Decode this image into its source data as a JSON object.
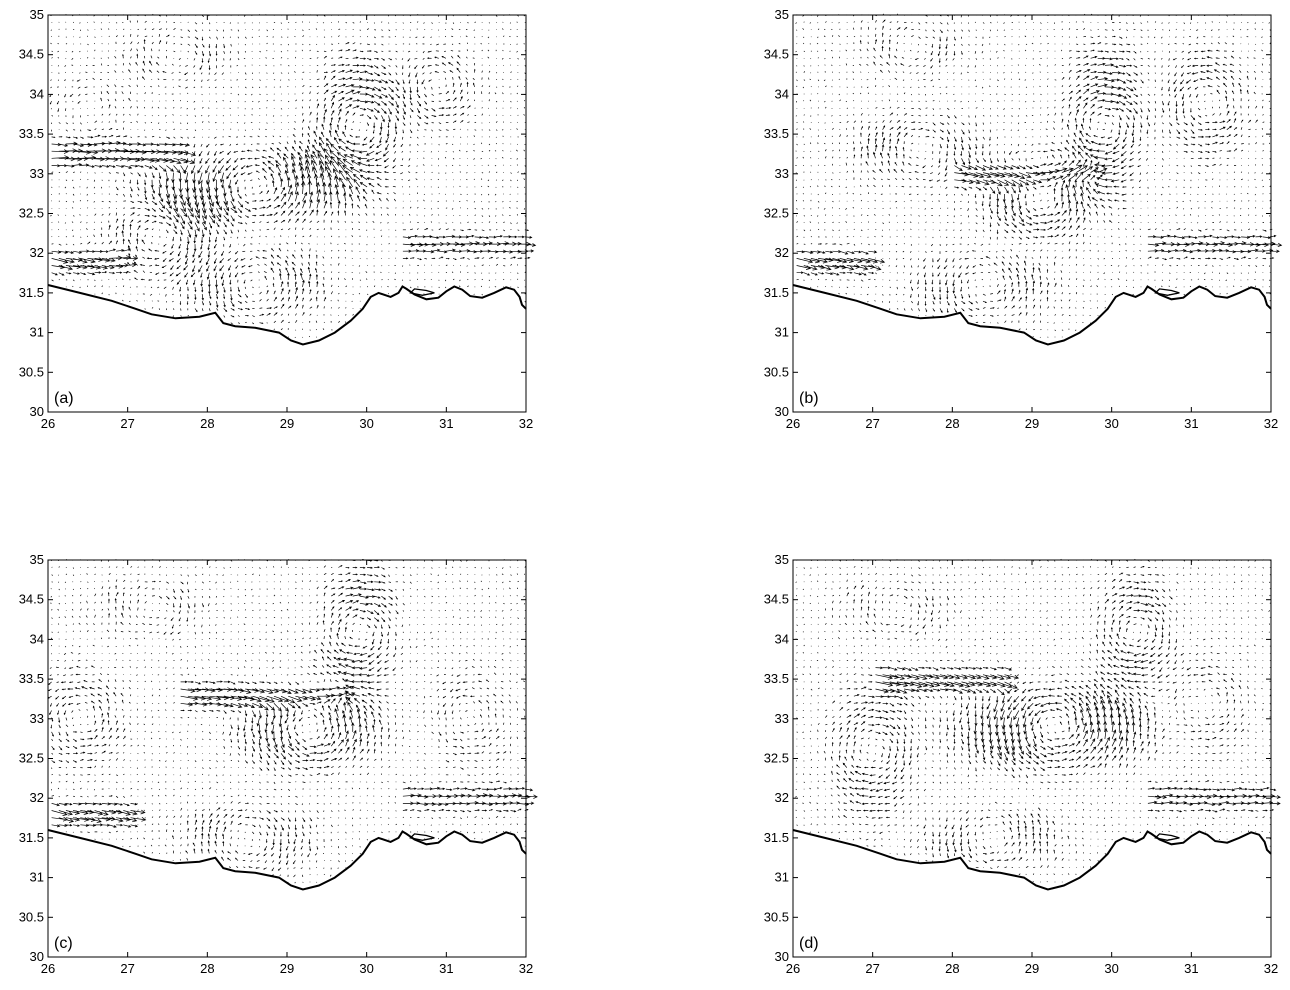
{
  "figure": {
    "panels": [
      {
        "id": "a",
        "label": "(a)"
      },
      {
        "id": "b",
        "label": "(b)"
      },
      {
        "id": "c",
        "label": "(c)"
      },
      {
        "id": "d",
        "label": "(d)"
      }
    ]
  },
  "chart_data": [
    {
      "type": "quiver",
      "panel_label": "(a)",
      "xlim": [
        26,
        32
      ],
      "ylim": [
        30,
        35
      ],
      "xticks": [
        "26",
        "27",
        "28",
        "29",
        "30",
        "31",
        "32"
      ],
      "yticks": [
        "30",
        "30.5",
        "31",
        "31.5",
        "32",
        "32.5",
        "33",
        "33.5",
        "34",
        "34.5",
        "35"
      ],
      "grid": false,
      "features": {
        "coastline": true,
        "eddies": [
          {
            "x": 28.6,
            "y": 32.85,
            "rx": 0.9,
            "ry": 0.35,
            "sign": 1,
            "strength": 1.0
          },
          {
            "x": 29.9,
            "y": 33.6,
            "rx": 0.4,
            "ry": 0.6,
            "sign": -1,
            "strength": 1.0
          },
          {
            "x": 30.9,
            "y": 34.1,
            "rx": 0.35,
            "ry": 0.35,
            "sign": 1,
            "strength": 0.8
          },
          {
            "x": 27.4,
            "y": 32.2,
            "rx": 0.5,
            "ry": 0.4,
            "sign": -1,
            "strength": 0.7
          },
          {
            "x": 28.6,
            "y": 31.6,
            "rx": 0.6,
            "ry": 0.35,
            "sign": 1,
            "strength": 0.7
          },
          {
            "x": 27.6,
            "y": 34.5,
            "rx": 0.5,
            "ry": 0.3,
            "sign": -1,
            "strength": 0.5
          },
          {
            "x": 26.5,
            "y": 33.8,
            "rx": 0.4,
            "ry": 0.35,
            "sign": 1,
            "strength": 0.4
          }
        ],
        "jets": [
          {
            "y": 33.25,
            "x0": 26.0,
            "x1": 27.5,
            "u": 1,
            "v": 0,
            "strength": 0.9
          },
          {
            "y": 31.9,
            "x0": 26.0,
            "x1": 26.8,
            "u": 1,
            "v": -0.2,
            "strength": 0.8
          },
          {
            "y": 32.1,
            "x0": 30.6,
            "x1": 32.0,
            "u": 1,
            "v": 0,
            "strength": 0.6
          }
        ]
      }
    },
    {
      "type": "quiver",
      "panel_label": "(b)",
      "xlim": [
        26,
        32
      ],
      "ylim": [
        30,
        35
      ],
      "xticks": [
        "26",
        "27",
        "28",
        "29",
        "30",
        "31",
        "32"
      ],
      "yticks": [
        "30",
        "30.5",
        "31",
        "31.5",
        "32",
        "32.5",
        "33",
        "33.5",
        "34",
        "34.5",
        "35"
      ],
      "grid": false,
      "features": {
        "coastline": true,
        "eddies": [
          {
            "x": 29.1,
            "y": 32.7,
            "rx": 0.5,
            "ry": 0.4,
            "sign": 1,
            "strength": 1.0
          },
          {
            "x": 29.9,
            "y": 33.6,
            "rx": 0.35,
            "ry": 0.65,
            "sign": -1,
            "strength": 1.0
          },
          {
            "x": 31.2,
            "y": 33.9,
            "rx": 0.4,
            "ry": 0.5,
            "sign": 1,
            "strength": 0.7
          },
          {
            "x": 27.6,
            "y": 33.3,
            "rx": 0.6,
            "ry": 0.35,
            "sign": -1,
            "strength": 0.6
          },
          {
            "x": 28.4,
            "y": 31.6,
            "rx": 0.6,
            "ry": 0.35,
            "sign": 1,
            "strength": 0.6
          },
          {
            "x": 27.5,
            "y": 34.6,
            "rx": 0.5,
            "ry": 0.3,
            "sign": -1,
            "strength": 0.5
          }
        ],
        "jets": [
          {
            "y": 33.0,
            "x0": 28.2,
            "x1": 29.7,
            "u": 1,
            "v": 0,
            "strength": 0.9
          },
          {
            "y": 31.9,
            "x0": 26.0,
            "x1": 26.8,
            "u": 1,
            "v": -0.2,
            "strength": 0.8
          },
          {
            "y": 32.1,
            "x0": 30.6,
            "x1": 32.0,
            "u": 1,
            "v": 0,
            "strength": 0.6
          }
        ]
      }
    },
    {
      "type": "quiver",
      "panel_label": "(c)",
      "xlim": [
        26,
        32
      ],
      "ylim": [
        30,
        35
      ],
      "xticks": [
        "26",
        "27",
        "28",
        "29",
        "30",
        "31",
        "32"
      ],
      "yticks": [
        "30",
        "30.5",
        "31",
        "31.5",
        "32",
        "32.5",
        "33",
        "33.5",
        "34",
        "34.5",
        "35"
      ],
      "grid": false,
      "features": {
        "coastline": true,
        "eddies": [
          {
            "x": 29.3,
            "y": 32.9,
            "rx": 0.6,
            "ry": 0.4,
            "sign": 1,
            "strength": 1.0
          },
          {
            "x": 29.9,
            "y": 34.1,
            "rx": 0.35,
            "ry": 0.6,
            "sign": -1,
            "strength": 0.9
          },
          {
            "x": 26.4,
            "y": 33.0,
            "rx": 0.4,
            "ry": 0.45,
            "sign": 1,
            "strength": 0.7
          },
          {
            "x": 28.5,
            "y": 31.5,
            "rx": 0.6,
            "ry": 0.35,
            "sign": -1,
            "strength": 0.6
          },
          {
            "x": 31.3,
            "y": 33.0,
            "rx": 0.4,
            "ry": 0.45,
            "sign": 1,
            "strength": 0.5
          },
          {
            "x": 27.3,
            "y": 34.4,
            "rx": 0.5,
            "ry": 0.3,
            "sign": -1,
            "strength": 0.5
          }
        ],
        "jets": [
          {
            "y": 33.3,
            "x0": 27.8,
            "x1": 29.6,
            "u": 1,
            "v": -0.1,
            "strength": 0.9
          },
          {
            "y": 31.8,
            "x0": 26.0,
            "x1": 26.9,
            "u": 1,
            "v": -0.2,
            "strength": 0.8
          },
          {
            "y": 32.0,
            "x0": 30.6,
            "x1": 32.0,
            "u": 1,
            "v": 0,
            "strength": 0.6
          }
        ]
      }
    },
    {
      "type": "quiver",
      "panel_label": "(d)",
      "xlim": [
        26,
        32
      ],
      "ylim": [
        30,
        35
      ],
      "xticks": [
        "26",
        "27",
        "28",
        "29",
        "30",
        "31",
        "32"
      ],
      "yticks": [
        "30",
        "30.5",
        "31",
        "31.5",
        "32",
        "32.5",
        "33",
        "33.5",
        "34",
        "34.5",
        "35"
      ],
      "grid": false,
      "features": {
        "coastline": true,
        "eddies": [
          {
            "x": 29.3,
            "y": 32.9,
            "rx": 0.8,
            "ry": 0.4,
            "sign": 1,
            "strength": 1.0
          },
          {
            "x": 30.3,
            "y": 34.1,
            "rx": 0.35,
            "ry": 0.5,
            "sign": -1,
            "strength": 0.9
          },
          {
            "x": 27.0,
            "y": 32.6,
            "rx": 0.4,
            "ry": 0.6,
            "sign": -1,
            "strength": 0.7
          },
          {
            "x": 28.5,
            "y": 31.5,
            "rx": 0.6,
            "ry": 0.3,
            "sign": 1,
            "strength": 0.6
          },
          {
            "x": 31.2,
            "y": 33.2,
            "rx": 0.4,
            "ry": 0.45,
            "sign": 1,
            "strength": 0.5
          },
          {
            "x": 27.3,
            "y": 34.4,
            "rx": 0.5,
            "ry": 0.3,
            "sign": -1,
            "strength": 0.5
          }
        ],
        "jets": [
          {
            "y": 33.5,
            "x0": 27.2,
            "x1": 28.5,
            "u": 1,
            "v": -0.2,
            "strength": 0.8
          },
          {
            "y": 32.0,
            "x0": 30.6,
            "x1": 32.0,
            "u": 1,
            "v": 0,
            "strength": 0.6
          }
        ]
      }
    }
  ]
}
